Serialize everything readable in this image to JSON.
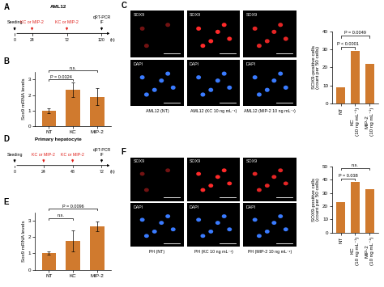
{
  "timelines": [
    {
      "panel": "A",
      "title": "AML12",
      "ticks": [
        0,
        24,
        72,
        120
      ],
      "unit": "(h)",
      "events": [
        {
          "at": 0,
          "label": "Seeding",
          "color": "#000000"
        },
        {
          "at": 24,
          "label": "KC or MIP-2",
          "color": "#e0201b"
        },
        {
          "at": 72,
          "label": "KC or MIP-2",
          "color": "#e0201b"
        },
        {
          "at": 120,
          "label": "qRT-PCR\nIF",
          "color": "#000000"
        }
      ]
    },
    {
      "panel": "D",
      "title": "Primary hepatocyte",
      "ticks": [
        0,
        24,
        48,
        72
      ],
      "unit": "(h)",
      "events": [
        {
          "at": 0,
          "label": "Seeding",
          "color": "#000000"
        },
        {
          "at": 24,
          "label": "KC or MIP-2",
          "color": "#e0201b"
        },
        {
          "at": 48,
          "label": "KC or MIP-2",
          "color": "#e0201b"
        },
        {
          "at": 72,
          "label": "qRT-PCR\nIF",
          "color": "#000000"
        }
      ]
    }
  ],
  "micrographs": [
    {
      "panel": "C",
      "channels": [
        "SOX9",
        "DAPI"
      ],
      "channel_colors": [
        "#ff2a2a",
        "#3a7bff"
      ],
      "columns": [
        "AML12 (NT)",
        "AML12 (KC 10 ng mL⁻¹)",
        "AML12 (MIP-2 10 ng mL⁻¹)"
      ]
    },
    {
      "panel": "F",
      "channels": [
        "SOX9",
        "DAPI"
      ],
      "channel_colors": [
        "#ff2a2a",
        "#3a7bff"
      ],
      "columns": [
        "PH (NT)",
        "PH (KC 10 ng mL⁻¹)",
        "PH (MIP-2 10 ng mL⁻¹)"
      ]
    }
  ],
  "chart_data": [
    {
      "type": "bar",
      "panel": "B",
      "y_label": "Sox9 mRNA levels",
      "categories": [
        "NT",
        "KC",
        "MIP-2"
      ],
      "values": [
        1.0,
        2.35,
        1.9
      ],
      "errors": [
        0.15,
        0.45,
        0.55
      ],
      "color": "#d07a2e",
      "ylim": [
        0,
        3.5
      ],
      "yticks": [
        0,
        1,
        2,
        3
      ],
      "annotations": [
        {
          "text": "P = 0.0324",
          "between": [
            "NT",
            "KC"
          ]
        },
        {
          "text": "n.s.",
          "between": [
            "NT",
            "MIP-2"
          ]
        }
      ]
    },
    {
      "type": "bar",
      "y_label": "SOX9-positive cells\n(count per 50 cells)",
      "categories": [
        "NT",
        "KC\n(10 ng mL⁻¹)",
        "MIP-2\n(10 ng mL⁻¹)"
      ],
      "values": [
        9,
        29,
        22
      ],
      "color": "#d07a2e",
      "ylim": [
        0,
        40
      ],
      "yticks": [
        0,
        10,
        20,
        30,
        40
      ],
      "annotations": [
        {
          "text": "P < 0.0001",
          "between": [
            "NT",
            "KC\n(10 ng mL⁻¹)"
          ]
        },
        {
          "text": "P = 0.0049",
          "between": [
            "NT",
            "MIP-2\n(10 ng mL⁻¹)"
          ]
        }
      ]
    },
    {
      "type": "bar",
      "panel": "E",
      "y_label": "Sox9 mRNA levels",
      "categories": [
        "NT",
        "KC",
        "MIP-2"
      ],
      "values": [
        1.0,
        1.75,
        2.65
      ],
      "errors": [
        0.1,
        0.65,
        0.3
      ],
      "color": "#d07a2e",
      "ylim": [
        0,
        3.5
      ],
      "yticks": [
        0,
        1,
        2,
        3
      ],
      "annotations": [
        {
          "text": "n.s.",
          "between": [
            "NT",
            "KC"
          ]
        },
        {
          "text": "P = 0.0096",
          "between": [
            "NT",
            "MIP-2"
          ]
        }
      ]
    },
    {
      "type": "bar",
      "y_label": "SOX9-positive cells\n(count per 50 cells)",
      "categories": [
        "NT",
        "KC\n(10 ng mL⁻¹)",
        "MIP-2\n(10 ng mL⁻¹)"
      ],
      "values": [
        23,
        38,
        33
      ],
      "color": "#d07a2e",
      "ylim": [
        0,
        50
      ],
      "yticks": [
        0,
        10,
        20,
        30,
        40,
        50
      ],
      "annotations": [
        {
          "text": "P = 0.038",
          "between": [
            "NT",
            "KC\n(10 ng mL⁻¹)"
          ]
        },
        {
          "text": "n.s.",
          "between": [
            "NT",
            "MIP-2\n(10 ng mL⁻¹)"
          ]
        }
      ]
    }
  ]
}
